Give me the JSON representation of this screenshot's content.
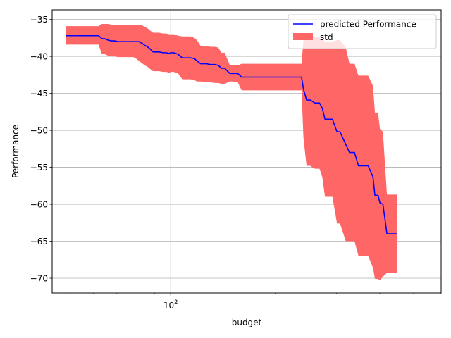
{
  "chart_data": {
    "type": "line",
    "xlabel": "budget",
    "ylabel": "Performance",
    "xscale": "log",
    "xlim": [
      45.6,
      600
    ],
    "ylim": [
      -72,
      -33.7
    ],
    "yticks": [
      -35,
      -40,
      -45,
      -50,
      -55,
      -60,
      -65,
      -70
    ],
    "xticks": [
      {
        "value": 100,
        "label": "10^2",
        "base": "10",
        "exp": "2"
      }
    ],
    "x_minor_ticks": [
      50,
      60,
      70,
      80,
      90,
      200,
      300,
      400,
      500,
      600
    ],
    "grid": true,
    "legend": {
      "placement": "top-right",
      "entries": [
        {
          "label": "predicted Performance",
          "color": "#0000ff",
          "kind": "line"
        },
        {
          "label": "std",
          "color": "#ff6666",
          "kind": "patch"
        }
      ]
    },
    "series": [
      {
        "name": "predicted Performance",
        "color": "#0000ff",
        "x": [
          50,
          52.2,
          55.6,
          58,
          61,
          62,
          63.4,
          64.6,
          66,
          67.5,
          69,
          70.5,
          72,
          78,
          79.5,
          81,
          82.6,
          84.2,
          85.8,
          87.3,
          89,
          92.7,
          95,
          97.1,
          99,
          100.2,
          102,
          105,
          108,
          114,
          117,
          119,
          122,
          127,
          130,
          134,
          137,
          140,
          143,
          148,
          150,
          156,
          160,
          238,
          241,
          246,
          252,
          260,
          268,
          273,
          278,
          286,
          292,
          301,
          307,
          319,
          327,
          338,
          347,
          370,
          382,
          387,
          395,
          400,
          408,
          419,
          426,
          448
        ],
        "y": [
          -37.2,
          -37.2,
          -37.2,
          -37.2,
          -37.2,
          -37.2,
          -37.6,
          -37.6,
          -37.8,
          -37.9,
          -37.9,
          -38.0,
          -38.0,
          -38.0,
          -38.0,
          -38.0,
          -38.2,
          -38.5,
          -38.7,
          -39.0,
          -39.4,
          -39.4,
          -39.5,
          -39.5,
          -39.6,
          -39.5,
          -39.5,
          -39.7,
          -40.2,
          -40.2,
          -40.3,
          -40.6,
          -41.0,
          -41.0,
          -41.1,
          -41.1,
          -41.2,
          -41.6,
          -41.6,
          -42.3,
          -42.3,
          -42.3,
          -42.8,
          -42.8,
          -44.4,
          -45.9,
          -45.9,
          -46.3,
          -46.3,
          -47.0,
          -48.5,
          -48.5,
          -48.5,
          -50.2,
          -50.2,
          -51.9,
          -53.0,
          -53.0,
          -54.8,
          -54.8,
          -56.3,
          -58.8,
          -58.8,
          -59.8,
          -60.0,
          -64.0,
          -64.0,
          -64.0
        ]
      },
      {
        "name": "std",
        "color": "#ff6666",
        "x": [
          50,
          52.2,
          55.6,
          58,
          61,
          62,
          63.4,
          64.6,
          66,
          67.5,
          69,
          70.5,
          72,
          78,
          79.5,
          81,
          82.6,
          84.2,
          85.8,
          87.3,
          89,
          92.7,
          95,
          97.1,
          99,
          100.2,
          102,
          105,
          108,
          114,
          117,
          119,
          122,
          127,
          130,
          134,
          137,
          140,
          143,
          148,
          150,
          156,
          160,
          238,
          241,
          246,
          252,
          260,
          268,
          273,
          278,
          286,
          292,
          301,
          307,
          319,
          327,
          338,
          347,
          370,
          382,
          387,
          395,
          400,
          408,
          419,
          426,
          448
        ],
        "lower": [
          -38.4,
          -38.4,
          -38.4,
          -38.4,
          -38.4,
          -38.4,
          -39.7,
          -39.7,
          -39.9,
          -40.0,
          -40.0,
          -40.1,
          -40.1,
          -40.1,
          -40.3,
          -40.6,
          -40.9,
          -41.2,
          -41.4,
          -41.7,
          -42.0,
          -42.0,
          -42.1,
          -42.1,
          -42.2,
          -42.1,
          -42.1,
          -42.3,
          -43.1,
          -43.1,
          -43.2,
          -43.4,
          -43.4,
          -43.5,
          -43.5,
          -43.6,
          -43.6,
          -43.7,
          -43.7,
          -43.4,
          -43.4,
          -43.5,
          -44.6,
          -44.6,
          -51.0,
          -54.8,
          -54.8,
          -55.2,
          -55.2,
          -56.3,
          -59.0,
          -59.0,
          -59.0,
          -62.6,
          -62.6,
          -65.0,
          -65.0,
          -65.0,
          -67.0,
          -67.0,
          -68.6,
          -70.1,
          -70.1,
          -70.3,
          -69.8,
          -69.3,
          -69.3,
          -69.3
        ],
        "upper": [
          -35.9,
          -35.9,
          -35.9,
          -35.9,
          -35.9,
          -35.9,
          -35.6,
          -35.6,
          -35.6,
          -35.7,
          -35.7,
          -35.8,
          -35.8,
          -35.8,
          -35.8,
          -35.8,
          -35.8,
          -36.0,
          -36.2,
          -36.5,
          -36.8,
          -36.8,
          -36.9,
          -36.9,
          -37.0,
          -37.0,
          -37.0,
          -37.2,
          -37.3,
          -37.3,
          -37.5,
          -37.8,
          -38.6,
          -38.6,
          -38.7,
          -38.7,
          -38.8,
          -39.5,
          -39.5,
          -41.2,
          -41.2,
          -41.2,
          -41.0,
          -41.0,
          -37.8,
          -37.0,
          -37.0,
          -37.4,
          -37.4,
          -37.7,
          -38.0,
          -38.0,
          -38.0,
          -37.8,
          -37.8,
          -38.8,
          -41.0,
          -41.0,
          -42.6,
          -42.6,
          -44.0,
          -47.6,
          -47.6,
          -49.8,
          -50.2,
          -58.7,
          -58.7,
          -58.7
        ]
      }
    ]
  }
}
